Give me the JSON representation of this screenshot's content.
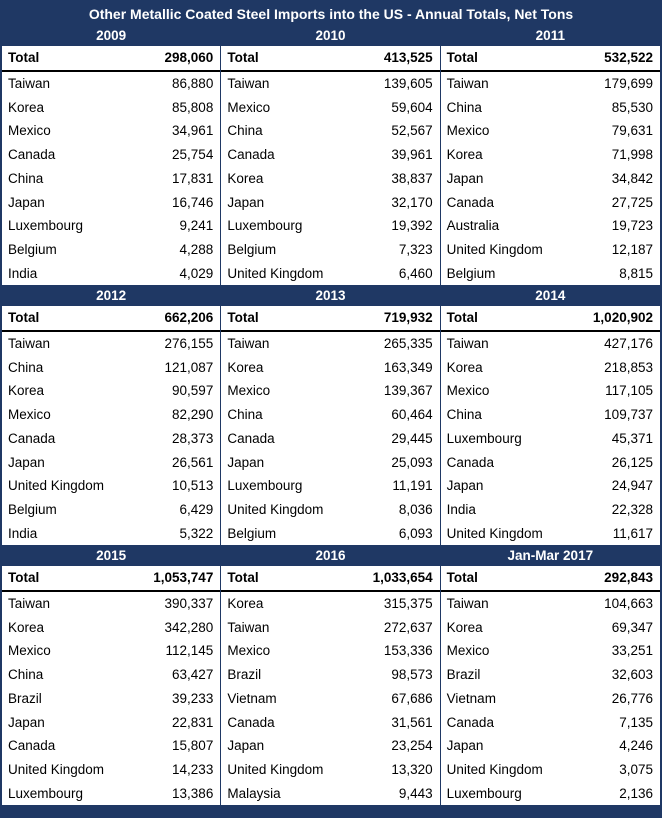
{
  "title": "Other Metallic Coated Steel Imports into the US - Annual Totals, Net Tons",
  "colors": {
    "navy": "#1F3864",
    "text": "#000000",
    "background": "#FFFFFF"
  },
  "chart_data": {
    "type": "table",
    "title": "Other Metallic Coated Steel Imports into the US - Annual Totals, Net Tons",
    "unit": "Net Tons",
    "layout": "3x3 grid of yearly panels, each with a bold Total row followed by country rows, values right-aligned",
    "panels": [
      {
        "year": "2009",
        "total_label": "Total",
        "total": "298,060",
        "rows": [
          {
            "country": "Taiwan",
            "value": "86,880"
          },
          {
            "country": "Korea",
            "value": "85,808"
          },
          {
            "country": "Mexico",
            "value": "34,961"
          },
          {
            "country": "Canada",
            "value": "25,754"
          },
          {
            "country": "China",
            "value": "17,831"
          },
          {
            "country": "Japan",
            "value": "16,746"
          },
          {
            "country": "Luxembourg",
            "value": "9,241"
          },
          {
            "country": "Belgium",
            "value": "4,288"
          },
          {
            "country": "India",
            "value": "4,029"
          }
        ]
      },
      {
        "year": "2010",
        "total_label": "Total",
        "total": "413,525",
        "rows": [
          {
            "country": "Taiwan",
            "value": "139,605"
          },
          {
            "country": "Mexico",
            "value": "59,604"
          },
          {
            "country": "China",
            "value": "52,567"
          },
          {
            "country": "Canada",
            "value": "39,961"
          },
          {
            "country": "Korea",
            "value": "38,837"
          },
          {
            "country": "Japan",
            "value": "32,170"
          },
          {
            "country": "Luxembourg",
            "value": "19,392"
          },
          {
            "country": "Belgium",
            "value": "7,323"
          },
          {
            "country": "United Kingdom",
            "value": "6,460"
          }
        ]
      },
      {
        "year": "2011",
        "total_label": "Total",
        "total": "532,522",
        "rows": [
          {
            "country": "Taiwan",
            "value": "179,699"
          },
          {
            "country": "China",
            "value": "85,530"
          },
          {
            "country": "Mexico",
            "value": "79,631"
          },
          {
            "country": "Korea",
            "value": "71,998"
          },
          {
            "country": "Japan",
            "value": "34,842"
          },
          {
            "country": "Canada",
            "value": "27,725"
          },
          {
            "country": "Australia",
            "value": "19,723"
          },
          {
            "country": "United Kingdom",
            "value": "12,187"
          },
          {
            "country": "Belgium",
            "value": "8,815"
          }
        ]
      },
      {
        "year": "2012",
        "total_label": "Total",
        "total": "662,206",
        "rows": [
          {
            "country": "Taiwan",
            "value": "276,155"
          },
          {
            "country": "China",
            "value": "121,087"
          },
          {
            "country": "Korea",
            "value": "90,597"
          },
          {
            "country": "Mexico",
            "value": "82,290"
          },
          {
            "country": "Canada",
            "value": "28,373"
          },
          {
            "country": "Japan",
            "value": "26,561"
          },
          {
            "country": "United Kingdom",
            "value": "10,513"
          },
          {
            "country": "Belgium",
            "value": "6,429"
          },
          {
            "country": "India",
            "value": "5,322"
          }
        ]
      },
      {
        "year": "2013",
        "total_label": "Total",
        "total": "719,932",
        "rows": [
          {
            "country": "Taiwan",
            "value": "265,335"
          },
          {
            "country": "Korea",
            "value": "163,349"
          },
          {
            "country": "Mexico",
            "value": "139,367"
          },
          {
            "country": "China",
            "value": "60,464"
          },
          {
            "country": "Canada",
            "value": "29,445"
          },
          {
            "country": "Japan",
            "value": "25,093"
          },
          {
            "country": "Luxembourg",
            "value": "11,191"
          },
          {
            "country": "United Kingdom",
            "value": "8,036"
          },
          {
            "country": "Belgium",
            "value": "6,093"
          }
        ]
      },
      {
        "year": "2014",
        "total_label": "Total",
        "total": "1,020,902",
        "rows": [
          {
            "country": "Taiwan",
            "value": "427,176"
          },
          {
            "country": "Korea",
            "value": "218,853"
          },
          {
            "country": "Mexico",
            "value": "117,105"
          },
          {
            "country": "China",
            "value": "109,737"
          },
          {
            "country": "Luxembourg",
            "value": "45,371"
          },
          {
            "country": "Canada",
            "value": "26,125"
          },
          {
            "country": "Japan",
            "value": "24,947"
          },
          {
            "country": "India",
            "value": "22,328"
          },
          {
            "country": "United Kingdom",
            "value": "11,617"
          }
        ]
      },
      {
        "year": "2015",
        "total_label": "Total",
        "total": "1,053,747",
        "rows": [
          {
            "country": "Taiwan",
            "value": "390,337"
          },
          {
            "country": "Korea",
            "value": "342,280"
          },
          {
            "country": "Mexico",
            "value": "112,145"
          },
          {
            "country": "China",
            "value": "63,427"
          },
          {
            "country": "Brazil",
            "value": "39,233"
          },
          {
            "country": "Japan",
            "value": "22,831"
          },
          {
            "country": "Canada",
            "value": "15,807"
          },
          {
            "country": "United Kingdom",
            "value": "14,233"
          },
          {
            "country": "Luxembourg",
            "value": "13,386"
          }
        ]
      },
      {
        "year": "2016",
        "total_label": "Total",
        "total": "1,033,654",
        "rows": [
          {
            "country": "Korea",
            "value": "315,375"
          },
          {
            "country": "Taiwan",
            "value": "272,637"
          },
          {
            "country": "Mexico",
            "value": "153,336"
          },
          {
            "country": "Brazil",
            "value": "98,573"
          },
          {
            "country": "Vietnam",
            "value": "67,686"
          },
          {
            "country": "Canada",
            "value": "31,561"
          },
          {
            "country": "Japan",
            "value": "23,254"
          },
          {
            "country": "United Kingdom",
            "value": "13,320"
          },
          {
            "country": "Malaysia",
            "value": "9,443"
          }
        ]
      },
      {
        "year": "Jan-Mar 2017",
        "total_label": "Total",
        "total": "292,843",
        "rows": [
          {
            "country": "Taiwan",
            "value": "104,663"
          },
          {
            "country": "Korea",
            "value": "69,347"
          },
          {
            "country": "Mexico",
            "value": "33,251"
          },
          {
            "country": "Brazil",
            "value": "32,603"
          },
          {
            "country": "Vietnam",
            "value": "26,776"
          },
          {
            "country": "Canada",
            "value": "7,135"
          },
          {
            "country": "Japan",
            "value": "4,246"
          },
          {
            "country": "United Kingdom",
            "value": "3,075"
          },
          {
            "country": "Luxembourg",
            "value": "2,136"
          }
        ]
      }
    ]
  }
}
